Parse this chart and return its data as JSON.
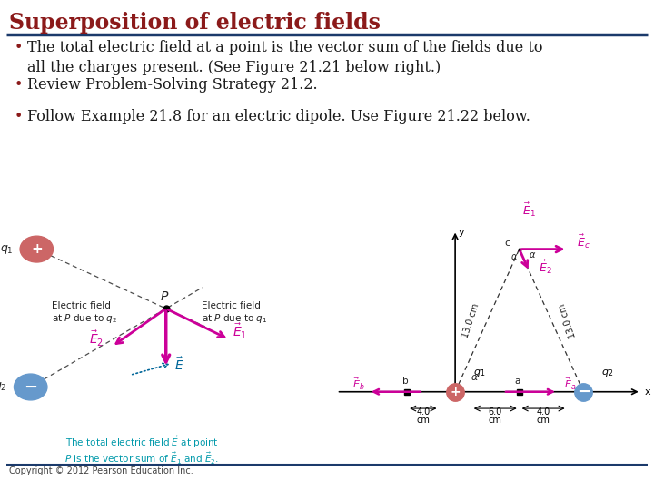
{
  "title": "Superposition of electric fields",
  "title_color": "#8B1A1A",
  "title_fontsize": 17,
  "bg_color": "#FFFFFF",
  "rule_color": "#1B3A6B",
  "bullet_color": "#8B1A1A",
  "bullet_text_color": "#1B1B1B",
  "bullet_fontsize": 11.5,
  "bullets": [
    "The total electric field at a point is the vector sum of the fields due to\nall the charges present. (See Figure 21.21 below right.)",
    "Review Problem-Solving Strategy 21.2.",
    "Follow Example 21.8 for an electric dipole. Use Figure 21.22 below."
  ],
  "footer_text": "Copyright © 2012 Pearson Education Inc.",
  "footer_fontsize": 7,
  "footer_color": "#444444",
  "magenta": "#CC0099",
  "cyan_text": "#0099AA",
  "dark_text": "#222222",
  "pos_color": "#CC6666",
  "neg_color": "#6699CC",
  "arrow_color": "#CC0099"
}
